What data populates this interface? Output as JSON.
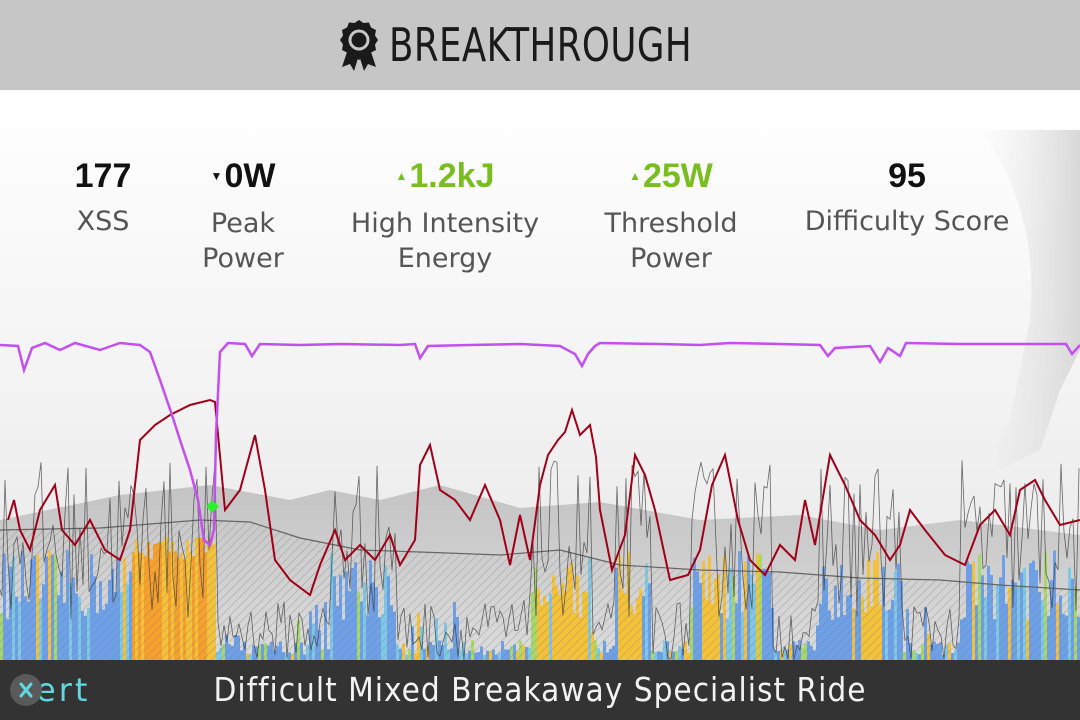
{
  "header": {
    "title": "BREAKTHROUGH",
    "icon": "award-ribbon-icon"
  },
  "metrics": [
    {
      "value": "177",
      "label": "XSS",
      "trend": "none"
    },
    {
      "value": "0W",
      "label": "Peak Power",
      "trend": "down"
    },
    {
      "value": "1.2kJ",
      "label": "High Intensity Energy",
      "trend": "up"
    },
    {
      "value": "25W",
      "label": "Threshold Power",
      "trend": "up"
    },
    {
      "value": "95",
      "label": "Difficulty Score",
      "trend": "none"
    }
  ],
  "metric_labels": {
    "xss": "XSS",
    "peak_power_1": "Peak",
    "peak_power_2": "Power",
    "hie_1": "High Intensity",
    "hie_2": "Energy",
    "tp_1": "Threshold",
    "tp_2": "Power",
    "difficulty": "Difficulty Score"
  },
  "colors": {
    "header_bg": "#c6c6c6",
    "footer_bg": "#333333",
    "increase": "#78be20",
    "mpa_line": "#c44ff0",
    "heart_rate_line": "#a00018",
    "breakthrough_marker": "#2bef2b",
    "logo": "#5fd8e0"
  },
  "footer": {
    "logo_text": "ert",
    "ride_title": "Difficult Mixed Breakaway Specialist Ride"
  }
}
